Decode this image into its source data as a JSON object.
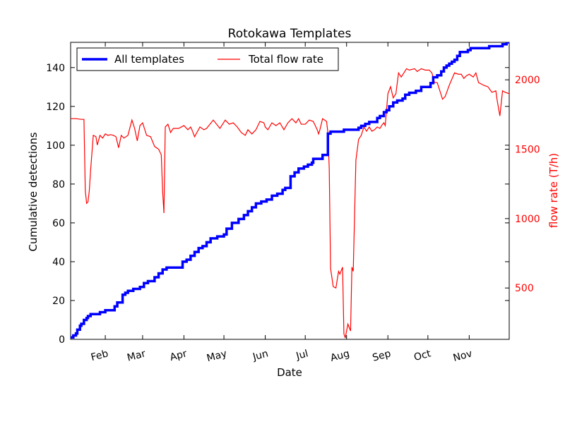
{
  "colors": {
    "primary_series": "#0000ff",
    "secondary_series": "#ff0000",
    "axis": "#000000"
  },
  "chart_data": {
    "type": "line",
    "title": "Rotokawa Templates",
    "xlabel": "Date",
    "ylabel": "Cumulative detections",
    "y2label": "flow rate (T/h)",
    "grid": false,
    "legend_position": "top-left",
    "xlim": [
      "2014-01-06",
      "2014-12-01"
    ],
    "ylim": [
      0,
      153
    ],
    "y2lim": [
      130,
      2270
    ],
    "x_ticks": [
      {
        "label": "Feb",
        "date": "2014-02-01"
      },
      {
        "label": "Mar",
        "date": "2014-03-01"
      },
      {
        "label": "Apr",
        "date": "2014-04-01"
      },
      {
        "label": "May",
        "date": "2014-05-01"
      },
      {
        "label": "Jun",
        "date": "2014-06-01"
      },
      {
        "label": "Jul",
        "date": "2014-07-01"
      },
      {
        "label": "Aug",
        "date": "2014-08-01"
      },
      {
        "label": "Sep",
        "date": "2014-09-01"
      },
      {
        "label": "Oct",
        "date": "2014-10-01"
      },
      {
        "label": "Nov",
        "date": "2014-11-01"
      }
    ],
    "y_ticks": [
      "0",
      "20",
      "40",
      "60",
      "80",
      "100",
      "120",
      "140"
    ],
    "y2_ticks": [
      "500",
      "1000",
      "1500",
      "2000"
    ],
    "series": [
      {
        "name": "All templates",
        "axis": "left",
        "style": "step",
        "x": [
          "2014-01-06",
          "2014-01-08",
          "2014-01-10",
          "2014-01-11",
          "2014-01-13",
          "2014-01-14",
          "2014-01-16",
          "2014-01-18",
          "2014-01-19",
          "2014-01-21",
          "2014-01-25",
          "2014-01-28",
          "2014-02-01",
          "2014-02-08",
          "2014-02-10",
          "2014-02-14",
          "2014-02-16",
          "2014-02-18",
          "2014-02-22",
          "2014-02-27",
          "2014-03-02",
          "2014-03-05",
          "2014-03-10",
          "2014-03-13",
          "2014-03-16",
          "2014-03-19",
          "2014-03-31",
          "2014-04-03",
          "2014-04-06",
          "2014-04-09",
          "2014-04-12",
          "2014-04-15",
          "2014-04-18",
          "2014-04-21",
          "2014-04-26",
          "2014-05-01",
          "2014-05-03",
          "2014-05-07",
          "2014-05-12",
          "2014-05-16",
          "2014-05-19",
          "2014-05-22",
          "2014-05-25",
          "2014-05-29",
          "2014-06-02",
          "2014-06-06",
          "2014-06-10",
          "2014-06-14",
          "2014-06-16",
          "2014-06-20",
          "2014-06-23",
          "2014-06-26",
          "2014-06-30",
          "2014-07-03",
          "2014-07-06",
          "2014-07-07",
          "2014-07-14",
          "2014-07-18",
          "2014-07-20",
          "2014-07-30",
          "2014-08-10",
          "2014-08-12",
          "2014-08-15",
          "2014-08-18",
          "2014-08-24",
          "2014-08-26",
          "2014-08-29",
          "2014-08-31",
          "2014-09-02",
          "2014-09-05",
          "2014-09-08",
          "2014-09-12",
          "2014-09-14",
          "2014-09-17",
          "2014-09-22",
          "2014-09-26",
          "2014-10-03",
          "2014-10-05",
          "2014-10-08",
          "2014-10-11",
          "2014-10-13",
          "2014-10-15",
          "2014-10-17",
          "2014-10-19",
          "2014-10-21",
          "2014-10-23",
          "2014-10-25",
          "2014-10-31",
          "2014-11-02",
          "2014-11-16",
          "2014-11-26",
          "2014-11-29",
          "2014-12-01"
        ],
        "values": [
          1,
          2,
          3,
          5,
          7,
          8,
          10,
          11,
          12,
          13,
          13,
          14,
          15,
          17,
          19,
          23,
          24,
          25,
          26,
          27,
          29,
          30,
          32,
          34,
          36,
          37,
          40,
          41,
          43,
          45,
          47,
          48,
          50,
          52,
          53,
          54,
          57,
          60,
          62,
          64,
          66,
          68,
          70,
          71,
          72,
          74,
          75,
          77,
          78,
          84,
          86,
          88,
          89,
          90,
          91,
          93,
          95,
          106,
          107,
          108,
          109,
          110,
          111,
          112,
          114,
          115,
          117,
          118,
          120,
          122,
          123,
          124,
          126,
          127,
          128,
          130,
          132,
          135,
          136,
          138,
          140,
          141,
          142,
          143,
          144,
          146,
          148,
          149,
          150,
          151,
          152,
          153,
          153
        ]
      },
      {
        "name": "Total flow rate",
        "axis": "right",
        "style": "line",
        "x": [
          "2014-01-06",
          "2014-01-10",
          "2014-01-14",
          "2014-01-16",
          "2014-01-17",
          "2014-01-18",
          "2014-01-19",
          "2014-01-20",
          "2014-01-21",
          "2014-01-23",
          "2014-01-25",
          "2014-01-26",
          "2014-01-28",
          "2014-01-30",
          "2014-02-01",
          "2014-02-03",
          "2014-02-05",
          "2014-02-07",
          "2014-02-09",
          "2014-02-11",
          "2014-02-13",
          "2014-02-15",
          "2014-02-18",
          "2014-02-21",
          "2014-02-23",
          "2014-02-25",
          "2014-02-27",
          "2014-03-01",
          "2014-03-04",
          "2014-03-07",
          "2014-03-10",
          "2014-03-13",
          "2014-03-15",
          "2014-03-16",
          "2014-03-17",
          "2014-03-18",
          "2014-03-20",
          "2014-03-22",
          "2014-03-24",
          "2014-03-28",
          "2014-04-01",
          "2014-04-04",
          "2014-04-06",
          "2014-04-07",
          "2014-04-09",
          "2014-04-13",
          "2014-04-16",
          "2014-04-18",
          "2014-04-23",
          "2014-04-28",
          "2014-05-02",
          "2014-05-05",
          "2014-05-08",
          "2014-05-11",
          "2014-05-14",
          "2014-05-17",
          "2014-05-19",
          "2014-05-22",
          "2014-05-25",
          "2014-05-28",
          "2014-05-31",
          "2014-06-01",
          "2014-06-03",
          "2014-06-06",
          "2014-06-09",
          "2014-06-12",
          "2014-06-15",
          "2014-06-18",
          "2014-06-21",
          "2014-06-24",
          "2014-06-26",
          "2014-06-28",
          "2014-07-01",
          "2014-07-04",
          "2014-07-07",
          "2014-07-09",
          "2014-07-10",
          "2014-07-11",
          "2014-07-12",
          "2014-07-14",
          "2014-07-17",
          "2014-07-18",
          "2014-07-19",
          "2014-07-20",
          "2014-07-22",
          "2014-07-24",
          "2014-07-26",
          "2014-07-27",
          "2014-07-29",
          "2014-07-30",
          "2014-07-31",
          "2014-08-02",
          "2014-08-04",
          "2014-08-05",
          "2014-08-06",
          "2014-08-08",
          "2014-08-10",
          "2014-08-12",
          "2014-08-14",
          "2014-08-16",
          "2014-08-18",
          "2014-08-20",
          "2014-08-22",
          "2014-08-24",
          "2014-08-26",
          "2014-08-28",
          "2014-08-29",
          "2014-08-30",
          "2014-09-01",
          "2014-09-03",
          "2014-09-05",
          "2014-09-07",
          "2014-09-09",
          "2014-09-11",
          "2014-09-15",
          "2014-09-17",
          "2014-09-21",
          "2014-09-23",
          "2014-09-26",
          "2014-09-29",
          "2014-10-02",
          "2014-10-04",
          "2014-10-06",
          "2014-10-08",
          "2014-10-12",
          "2014-10-14",
          "2014-10-17",
          "2014-10-21",
          "2014-10-24",
          "2014-10-26",
          "2014-10-28",
          "2014-10-30",
          "2014-11-01",
          "2014-11-04",
          "2014-11-06",
          "2014-11-08",
          "2014-11-10",
          "2014-11-12",
          "2014-11-15",
          "2014-11-18",
          "2014-11-21",
          "2014-11-22",
          "2014-11-24",
          "2014-11-26",
          "2014-11-28",
          "2014-12-01"
        ],
        "values": [
          1720,
          1720,
          1715,
          1715,
          1200,
          1110,
          1120,
          1200,
          1350,
          1600,
          1590,
          1530,
          1600,
          1580,
          1610,
          1600,
          1605,
          1600,
          1590,
          1510,
          1600,
          1580,
          1600,
          1710,
          1650,
          1560,
          1670,
          1690,
          1600,
          1590,
          1520,
          1500,
          1460,
          1200,
          1040,
          1660,
          1680,
          1620,
          1650,
          1650,
          1670,
          1640,
          1660,
          1640,
          1590,
          1660,
          1640,
          1650,
          1710,
          1650,
          1710,
          1680,
          1690,
          1660,
          1620,
          1600,
          1640,
          1610,
          1640,
          1700,
          1690,
          1660,
          1640,
          1690,
          1670,
          1690,
          1640,
          1690,
          1720,
          1690,
          1720,
          1680,
          1680,
          1710,
          1700,
          1660,
          1640,
          1610,
          1640,
          1720,
          1700,
          1620,
          1360,
          640,
          510,
          500,
          620,
          600,
          650,
          170,
          140,
          240,
          190,
          650,
          620,
          1420,
          1570,
          1600,
          1660,
          1630,
          1660,
          1630,
          1640,
          1660,
          1650,
          1680,
          1690,
          1670,
          1900,
          1950,
          1870,
          1900,
          2050,
          2020,
          2080,
          2070,
          2080,
          2060,
          2080,
          2070,
          2070,
          2050,
          1980,
          1980,
          1860,
          1880,
          1960,
          2050,
          2040,
          2040,
          2010,
          2030,
          2040,
          2020,
          2050,
          1980,
          1970,
          1960,
          1950,
          1910,
          1920,
          1850,
          1740,
          1920,
          1910,
          1900
        ]
      }
    ]
  }
}
